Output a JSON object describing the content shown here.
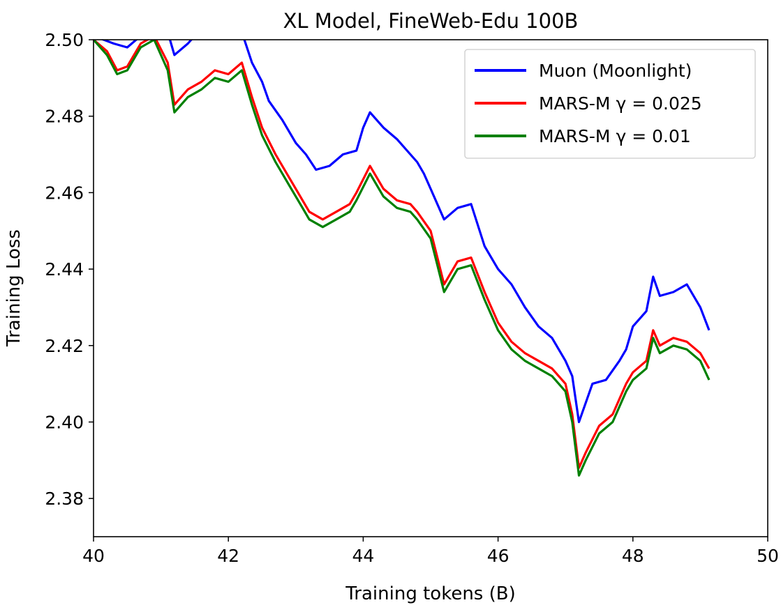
{
  "chart_data": {
    "type": "line",
    "title": "XL Model, FineWeb-Edu 100B",
    "xlabel": "Training tokens (B)",
    "ylabel": "Training Loss",
    "xlim": [
      40,
      50
    ],
    "ylim": [
      2.37,
      2.5
    ],
    "xticks": [
      "40",
      "42",
      "44",
      "46",
      "48",
      "50"
    ],
    "yticks": [
      "2.38",
      "2.40",
      "2.42",
      "2.44",
      "2.46",
      "2.48",
      "2.50"
    ],
    "grid": false,
    "legend_position": "top-right",
    "series": [
      {
        "name": "Muon (Moonlight)",
        "color": "#0000ff",
        "x": [
          40.0,
          40.3,
          40.5,
          40.7,
          40.9,
          41.1,
          41.2,
          41.4,
          41.6,
          41.8,
          42.0,
          42.2,
          42.35,
          42.5,
          42.6,
          42.8,
          43.0,
          43.15,
          43.3,
          43.5,
          43.7,
          43.9,
          44.0,
          44.1,
          44.3,
          44.5,
          44.7,
          44.8,
          44.9,
          45.0,
          45.2,
          45.4,
          45.6,
          45.8,
          46.0,
          46.2,
          46.4,
          46.6,
          46.8,
          47.0,
          47.1,
          47.2,
          47.3,
          47.4,
          47.6,
          47.8,
          47.9,
          48.0,
          48.2,
          48.3,
          48.4,
          48.6,
          48.8,
          49.0,
          49.13
        ],
        "y": [
          2.501,
          2.499,
          2.498,
          2.501,
          2.504,
          2.502,
          2.496,
          2.499,
          2.503,
          2.506,
          2.505,
          2.502,
          2.494,
          2.489,
          2.484,
          2.479,
          2.473,
          2.47,
          2.466,
          2.467,
          2.47,
          2.471,
          2.477,
          2.481,
          2.477,
          2.474,
          2.47,
          2.468,
          2.465,
          2.461,
          2.453,
          2.456,
          2.457,
          2.446,
          2.44,
          2.436,
          2.43,
          2.425,
          2.422,
          2.416,
          2.412,
          2.4,
          2.405,
          2.41,
          2.411,
          2.416,
          2.419,
          2.425,
          2.429,
          2.438,
          2.433,
          2.434,
          2.436,
          2.43,
          2.424
        ]
      },
      {
        "name": "MARS-M γ = 0.025",
        "color": "#ff0000",
        "x": [
          40.0,
          40.2,
          40.35,
          40.5,
          40.7,
          40.9,
          41.1,
          41.2,
          41.4,
          41.6,
          41.8,
          42.0,
          42.2,
          42.35,
          42.5,
          42.7,
          42.9,
          43.1,
          43.2,
          43.4,
          43.6,
          43.8,
          43.9,
          44.1,
          44.3,
          44.5,
          44.7,
          44.8,
          45.0,
          45.1,
          45.2,
          45.4,
          45.6,
          45.8,
          46.0,
          46.2,
          46.4,
          46.6,
          46.8,
          47.0,
          47.1,
          47.2,
          47.3,
          47.5,
          47.7,
          47.9,
          48.0,
          48.2,
          48.3,
          48.4,
          48.6,
          48.8,
          49.0,
          49.13
        ],
        "y": [
          2.5,
          2.497,
          2.492,
          2.493,
          2.499,
          2.501,
          2.494,
          2.483,
          2.487,
          2.489,
          2.492,
          2.491,
          2.494,
          2.485,
          2.477,
          2.47,
          2.464,
          2.458,
          2.455,
          2.453,
          2.455,
          2.457,
          2.46,
          2.467,
          2.461,
          2.458,
          2.457,
          2.455,
          2.45,
          2.443,
          2.436,
          2.442,
          2.443,
          2.434,
          2.426,
          2.421,
          2.418,
          2.416,
          2.414,
          2.41,
          2.402,
          2.388,
          2.392,
          2.399,
          2.402,
          2.41,
          2.413,
          2.416,
          2.424,
          2.42,
          2.422,
          2.421,
          2.418,
          2.414
        ]
      },
      {
        "name": "MARS-M γ = 0.01",
        "color": "#008000",
        "x": [
          40.0,
          40.2,
          40.35,
          40.5,
          40.7,
          40.9,
          41.1,
          41.2,
          41.4,
          41.6,
          41.8,
          42.0,
          42.2,
          42.35,
          42.5,
          42.7,
          42.9,
          43.1,
          43.2,
          43.4,
          43.6,
          43.8,
          43.9,
          44.1,
          44.3,
          44.5,
          44.7,
          44.8,
          45.0,
          45.1,
          45.2,
          45.4,
          45.6,
          45.8,
          46.0,
          46.2,
          46.4,
          46.6,
          46.8,
          47.0,
          47.1,
          47.2,
          47.3,
          47.5,
          47.7,
          47.9,
          48.0,
          48.2,
          48.3,
          48.4,
          48.6,
          48.8,
          49.0,
          49.13
        ],
        "y": [
          2.5,
          2.496,
          2.491,
          2.492,
          2.498,
          2.5,
          2.492,
          2.481,
          2.485,
          2.487,
          2.49,
          2.489,
          2.492,
          2.483,
          2.475,
          2.468,
          2.462,
          2.456,
          2.453,
          2.451,
          2.453,
          2.455,
          2.458,
          2.465,
          2.459,
          2.456,
          2.455,
          2.453,
          2.448,
          2.441,
          2.434,
          2.44,
          2.441,
          2.432,
          2.424,
          2.419,
          2.416,
          2.414,
          2.412,
          2.408,
          2.4,
          2.386,
          2.39,
          2.397,
          2.4,
          2.408,
          2.411,
          2.414,
          2.422,
          2.418,
          2.42,
          2.419,
          2.416,
          2.411
        ]
      }
    ]
  }
}
